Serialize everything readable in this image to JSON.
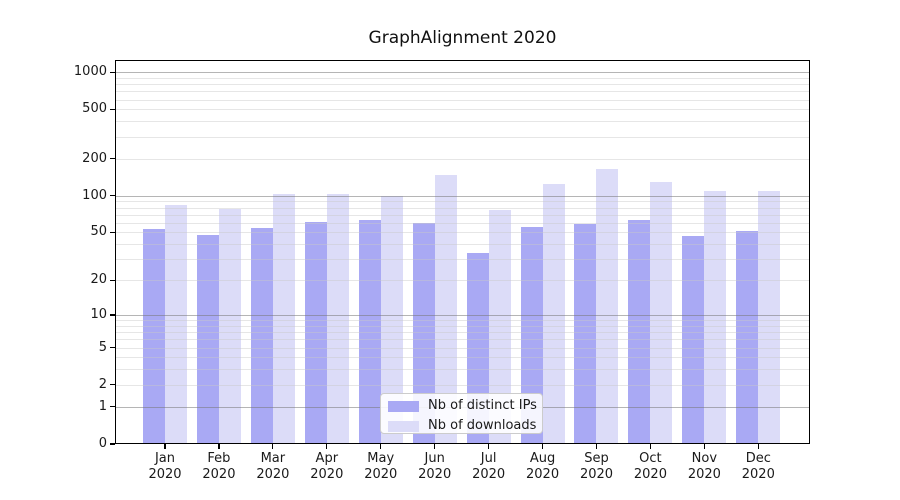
{
  "title": "GraphAlignment 2020",
  "chart_data": {
    "type": "bar",
    "title": "GraphAlignment 2020",
    "categories": [
      "Jan 2020",
      "Feb 2020",
      "Mar 2020",
      "Apr 2020",
      "May 2020",
      "Jun 2020",
      "Jul 2020",
      "Aug 2020",
      "Sep 2020",
      "Oct 2020",
      "Nov 2020",
      "Dec 2020"
    ],
    "series": [
      {
        "name": "Nb of distinct IPs",
        "color": "#a9a9f4",
        "values": [
          53,
          48,
          54,
          61,
          63,
          60,
          34,
          55,
          59,
          63,
          47,
          51
        ]
      },
      {
        "name": "Nb of downloads",
        "color": "#dcdcf8",
        "values": [
          84,
          78,
          104,
          103,
          100,
          147,
          77,
          125,
          165,
          130,
          109,
          110
        ]
      }
    ],
    "xlabel": "",
    "ylabel": "",
    "yscale": "log2(value+1)",
    "yticks": [
      0,
      1,
      2,
      5,
      10,
      20,
      50,
      100,
      200,
      500,
      1000
    ],
    "minor_gridlines": [
      2,
      3,
      4,
      5,
      6,
      7,
      8,
      9,
      20,
      30,
      40,
      50,
      60,
      70,
      80,
      90,
      200,
      300,
      400,
      500,
      600,
      700,
      800,
      900
    ],
    "major_gridlines": [
      1,
      10,
      100,
      1000
    ],
    "ylim": [
      0,
      1255
    ],
    "grid": true,
    "legend_position": "lower center",
    "legend_items": [
      "Nb of distinct IPs",
      "Nb of downloads"
    ]
  },
  "colors": {
    "bar_distinct_ips": "#a9a9f4",
    "bar_downloads": "#dcdcf8",
    "major_grid": "#999999",
    "minor_grid": "#c8c8c8",
    "axis": "#000000",
    "text": "#1a1a1a",
    "legend_border": "#cccccc"
  }
}
